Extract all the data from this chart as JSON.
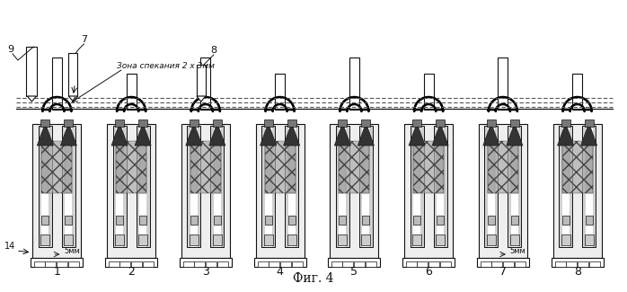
{
  "title": "Фиг. 4",
  "annotation_zone": "Зона спекания 2 х 3мм",
  "label_7": "7",
  "label_8": "8",
  "label_9": "9",
  "label_14": "14",
  "label_5mm": "5мм",
  "col_labels": [
    "1",
    "2",
    "3",
    "4",
    "5",
    "6",
    "7",
    "8"
  ],
  "n_cols": 8,
  "fig_w": 698,
  "fig_h": 325,
  "bg": "#ffffff",
  "lc": "#111111",
  "lc_thick": "#000000",
  "fc_light": "#e8e8e8",
  "fc_mid": "#aaaaaa",
  "fc_dark": "#555555",
  "fc_vdark": "#333333",
  "fc_white": "#ffffff"
}
